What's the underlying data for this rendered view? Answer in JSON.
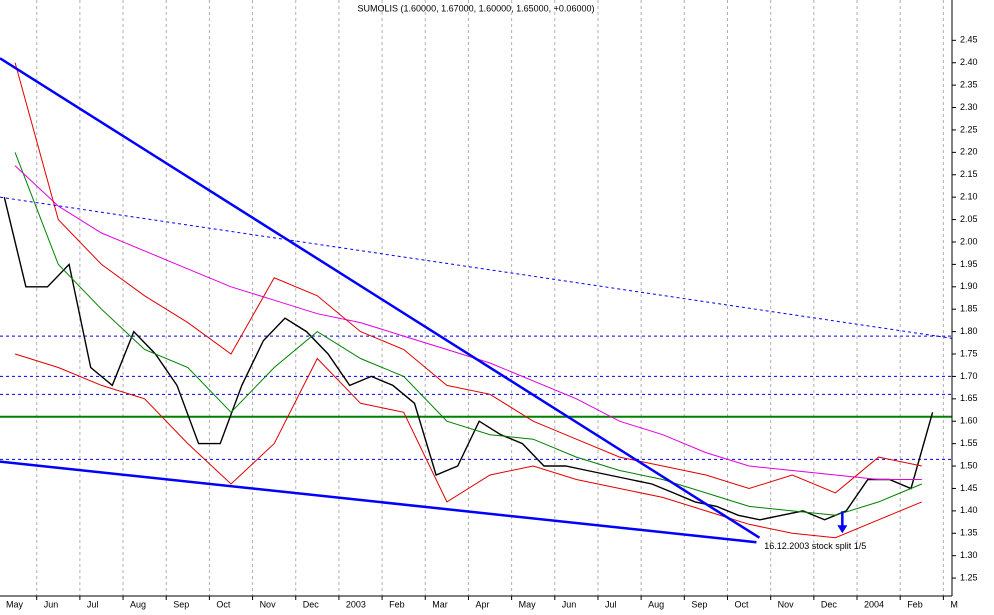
{
  "chart_data": {
    "type": "line",
    "title": "SUMOLIS (1.60000, 1.67000, 1.60000, 1.65000, +0.06000)",
    "xlim": [
      0.15,
      22.2
    ],
    "ylim": [
      1.21,
      2.54
    ],
    "xticks": [
      {
        "value": 0,
        "label": "May"
      },
      {
        "value": 1,
        "label": "Jun"
      },
      {
        "value": 2,
        "label": "Jul"
      },
      {
        "value": 3,
        "label": "Aug"
      },
      {
        "value": 4,
        "label": "Sep"
      },
      {
        "value": 5,
        "label": "Oct"
      },
      {
        "value": 6,
        "label": "Nov"
      },
      {
        "value": 7,
        "label": "Dec"
      },
      {
        "value": 8,
        "label": "2003"
      },
      {
        "value": 9,
        "label": "Feb"
      },
      {
        "value": 10,
        "label": "Mar"
      },
      {
        "value": 11,
        "label": "Apr"
      },
      {
        "value": 12,
        "label": "May"
      },
      {
        "value": 13,
        "label": "Jun"
      },
      {
        "value": 14,
        "label": "Jul"
      },
      {
        "value": 15,
        "label": "Aug"
      },
      {
        "value": 16,
        "label": "Sep"
      },
      {
        "value": 17,
        "label": "Oct"
      },
      {
        "value": 18,
        "label": "Nov"
      },
      {
        "value": 19,
        "label": "Dec"
      },
      {
        "value": 20,
        "label": "2004"
      },
      {
        "value": 21,
        "label": "Feb"
      },
      {
        "value": 22,
        "label": "M"
      }
    ],
    "yticks": [
      1.25,
      {
        "value": 1.3,
        "label": "1.30"
      },
      1.35,
      {
        "value": 1.4,
        "label": "1.40"
      },
      1.45,
      {
        "value": 1.5,
        "label": "1.50"
      },
      1.55,
      {
        "value": 1.6,
        "label": "1.60"
      },
      1.65,
      {
        "value": 1.7,
        "label": "1.70"
      },
      1.75,
      {
        "value": 1.8,
        "label": "1.80"
      },
      1.85,
      {
        "value": 1.9,
        "label": "1.90"
      },
      1.95,
      {
        "value": 2,
        "label": "2.00"
      },
      2.05,
      {
        "value": 2.1,
        "label": "2.10"
      },
      2.15,
      {
        "value": 2.2,
        "label": "2.20"
      },
      2.25,
      {
        "value": 2.3,
        "label": "2.30"
      },
      2.35,
      {
        "value": 2.4,
        "label": "2.40"
      },
      2.45
    ],
    "grid": true,
    "series": [
      {
        "color": "#000000",
        "width": 1.4,
        "x": [
          0.25,
          0.75,
          1.25,
          1.75,
          2.25,
          2.75,
          3.25,
          3.75,
          4.25,
          4.75,
          5.25,
          5.75,
          6.25,
          6.75,
          7.25,
          7.75,
          8.25,
          8.75,
          9.25,
          9.75,
          10.25,
          10.75,
          11.25,
          11.75,
          12.25,
          12.75,
          13.25,
          13.75,
          14.25,
          14.75,
          15.25,
          15.75,
          16.25,
          16.75,
          17.25,
          17.75,
          18.25,
          18.75,
          19.25,
          19.75,
          20.25,
          20.75,
          21.25,
          21.75
        ],
        "values": [
          2.1,
          1.9,
          1.9,
          1.95,
          1.72,
          1.68,
          1.8,
          1.75,
          1.68,
          1.55,
          1.55,
          1.68,
          1.78,
          1.83,
          1.8,
          1.75,
          1.68,
          1.7,
          1.68,
          1.64,
          1.48,
          1.5,
          1.6,
          1.57,
          1.55,
          1.5,
          1.5,
          1.49,
          1.48,
          1.47,
          1.46,
          1.44,
          1.42,
          1.41,
          1.39,
          1.38,
          1.39,
          1.4,
          1.38,
          1.4,
          1.47,
          1.47,
          1.45,
          1.62
        ]
      },
      {
        "color": "#008000",
        "width": 1,
        "x": [
          0.5,
          1.5,
          2.5,
          3.5,
          4.5,
          5.5,
          6.5,
          7.5,
          8.5,
          9.5,
          10.5,
          11.5,
          12.5,
          13.5,
          14.5,
          15.5,
          16.5,
          17.5,
          18.5,
          19.5,
          20.5,
          21.5
        ],
        "values": [
          2.2,
          1.95,
          1.85,
          1.76,
          1.72,
          1.62,
          1.72,
          1.8,
          1.74,
          1.7,
          1.6,
          1.57,
          1.56,
          1.52,
          1.49,
          1.47,
          1.44,
          1.41,
          1.4,
          1.39,
          1.42,
          1.46
        ]
      },
      {
        "color": "#e000e0",
        "width": 1,
        "x": [
          0.5,
          1.5,
          2.5,
          3.5,
          4.5,
          5.5,
          6.5,
          7.5,
          8.5,
          9.5,
          10.5,
          11.5,
          12.5,
          13.5,
          14.5,
          15.5,
          16.5,
          17.5,
          18.5,
          19.5,
          20.5,
          21.5
        ],
        "values": [
          2.17,
          2.08,
          2.02,
          1.98,
          1.94,
          1.9,
          1.87,
          1.84,
          1.82,
          1.79,
          1.76,
          1.73,
          1.69,
          1.65,
          1.6,
          1.57,
          1.53,
          1.5,
          1.49,
          1.48,
          1.47,
          1.47
        ]
      },
      {
        "color": "#e00000",
        "width": 1,
        "x": [
          0.5,
          1.5,
          2.5,
          3.5,
          4.5,
          5.5,
          6.5,
          7.5,
          8.5,
          9.5,
          10.5,
          11.5,
          12.5,
          13.5,
          14.5,
          15.5,
          16.5,
          17.5,
          18.5,
          19.5,
          20.5,
          21.5
        ],
        "values": [
          2.4,
          2.05,
          1.95,
          1.88,
          1.82,
          1.75,
          1.92,
          1.88,
          1.8,
          1.76,
          1.68,
          1.66,
          1.6,
          1.56,
          1.52,
          1.5,
          1.48,
          1.45,
          1.48,
          1.44,
          1.52,
          1.5
        ]
      },
      {
        "color": "#e00000",
        "width": 1,
        "x": [
          0.5,
          1.5,
          2.5,
          3.5,
          4.5,
          5.5,
          6.5,
          7.5,
          8.5,
          9.5,
          10.5,
          11.5,
          12.5,
          13.5,
          14.5,
          15.5,
          16.5,
          17.5,
          18.5,
          19.5,
          20.5,
          21.5
        ],
        "values": [
          1.75,
          1.72,
          1.68,
          1.65,
          1.55,
          1.46,
          1.55,
          1.74,
          1.64,
          1.62,
          1.42,
          1.48,
          1.5,
          1.47,
          1.45,
          1.43,
          1.4,
          1.37,
          1.35,
          1.34,
          1.38,
          1.42
        ]
      }
    ],
    "trendlines": [
      {
        "x": [
          0.15,
          17.74
        ],
        "y": [
          2.41,
          1.34
        ],
        "color": "#0000ff",
        "width": 2.5,
        "dashed": false
      },
      {
        "x": [
          0.15,
          17.67
        ],
        "y": [
          1.51,
          1.33
        ],
        "color": "#0000ff",
        "width": 2.5,
        "dashed": false
      },
      {
        "x": [
          0.15,
          22.2
        ],
        "y": [
          2.1,
          1.785
        ],
        "color": "#0000ff",
        "width": 1,
        "dashed": true
      }
    ],
    "levels": [
      {
        "value": 1.79,
        "color": "#0000ff",
        "width": 1,
        "dashed": true
      },
      {
        "value": 1.7,
        "color": "#0000ff",
        "width": 1,
        "dashed": true
      },
      {
        "value": 1.66,
        "color": "#0000ff",
        "width": 1,
        "dashed": true
      },
      {
        "value": 1.515,
        "color": "#0000ff",
        "width": 1,
        "dashed": true
      },
      {
        "value": 1.61,
        "color": "#008000",
        "width": 2,
        "dashed": false
      }
    ],
    "annotation": {
      "text": "16.12.2003 stock split 1/5",
      "x": 17.85,
      "y": 1.32,
      "color": "#0000ff"
    },
    "arrow": {
      "x": 19.66,
      "y": 1.35,
      "color": "#0000ff"
    }
  }
}
